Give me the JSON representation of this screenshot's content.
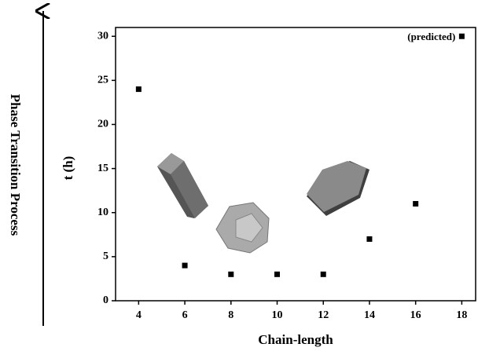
{
  "chart_data": {
    "type": "scatter",
    "side_label": "Phase Transition Process",
    "xlabel": "Chain-length",
    "ylabel": "t (h)",
    "annotation": "(predicted)",
    "x": [
      4,
      6,
      8,
      10,
      12,
      14,
      16,
      18
    ],
    "values": [
      24,
      4,
      3,
      3,
      3,
      7,
      11,
      30
    ],
    "color": "#000000",
    "xlim": [
      3,
      18.6
    ],
    "xticks": [
      4,
      6,
      8,
      10,
      12,
      14,
      16,
      18
    ],
    "ylim": [
      0,
      31
    ],
    "yticks": [
      0,
      5,
      10,
      15,
      20,
      25,
      30
    ],
    "grid": false
  }
}
